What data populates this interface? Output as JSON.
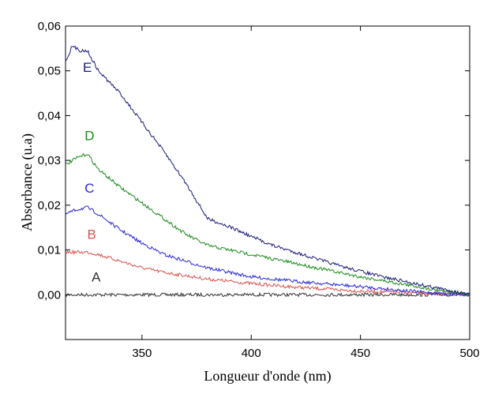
{
  "chart_data": {
    "type": "line",
    "title": "",
    "xlabel": "Longueur d'onde (nm)",
    "ylabel": "Absorbance (u.a)",
    "xlim": [
      315,
      500
    ],
    "ylim": [
      -0.01,
      0.06
    ],
    "xticks": [
      350,
      400,
      450,
      500
    ],
    "xtick_labels": [
      "350",
      "400",
      "450",
      "500"
    ],
    "yticks": [
      0.0,
      0.01,
      0.02,
      0.03,
      0.04,
      0.05,
      0.06
    ],
    "ytick_labels": [
      "0,00",
      "0,01",
      "0,02",
      "0,03",
      "0,04",
      "0,05",
      "0,06"
    ],
    "grid": false,
    "legend": "inline labels",
    "series": [
      {
        "name": "A",
        "color": "#333333",
        "label_at": [
          329,
          0.003
        ],
        "x": [
          315,
          325,
          350,
          400,
          450,
          500
        ],
        "y": [
          0.0,
          0.0,
          0.0,
          0.0,
          0.0,
          0.0
        ]
      },
      {
        "name": "B",
        "color": "#d9534f",
        "label_at": [
          327,
          0.0125
        ],
        "x": [
          315,
          325,
          330,
          340,
          350,
          360,
          380,
          400,
          420,
          450,
          480,
          500
        ],
        "y": [
          0.0095,
          0.0095,
          0.009,
          0.0075,
          0.006,
          0.005,
          0.0035,
          0.0025,
          0.0017,
          0.0008,
          0.0003,
          0.0
        ]
      },
      {
        "name": "C",
        "color": "#2a2ad8",
        "label_at": [
          326,
          0.0228
        ],
        "x": [
          315,
          320,
          325,
          330,
          340,
          350,
          360,
          380,
          400,
          420,
          450,
          480,
          500
        ],
        "y": [
          0.018,
          0.019,
          0.0195,
          0.018,
          0.0145,
          0.0115,
          0.009,
          0.006,
          0.004,
          0.003,
          0.0018,
          0.0005,
          0.0
        ]
      },
      {
        "name": "D",
        "color": "#1a8a1a",
        "label_at": [
          326,
          0.0345
        ],
        "x": [
          315,
          320,
          325,
          330,
          340,
          350,
          360,
          370,
          380,
          390,
          400,
          420,
          450,
          480,
          500
        ],
        "y": [
          0.029,
          0.0305,
          0.0315,
          0.028,
          0.024,
          0.0205,
          0.017,
          0.0135,
          0.011,
          0.01,
          0.009,
          0.007,
          0.004,
          0.0015,
          0.0
        ]
      },
      {
        "name": "E",
        "color": "#1a1a7a",
        "label_at": [
          325,
          0.0498
        ],
        "x": [
          315,
          318,
          322,
          325,
          330,
          340,
          350,
          360,
          370,
          380,
          390,
          400,
          410,
          420,
          440,
          460,
          480,
          500
        ],
        "y": [
          0.052,
          0.0555,
          0.0545,
          0.0545,
          0.05,
          0.045,
          0.0385,
          0.032,
          0.025,
          0.017,
          0.0152,
          0.013,
          0.011,
          0.0095,
          0.0065,
          0.004,
          0.002,
          0.0
        ]
      }
    ]
  }
}
